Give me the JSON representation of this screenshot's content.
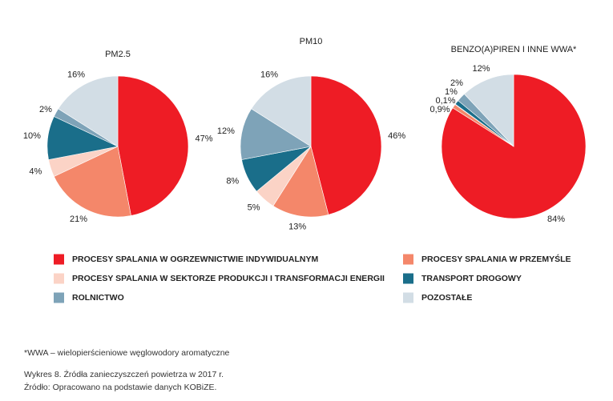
{
  "chart_data": [
    {
      "type": "pie",
      "title": "PM2.5",
      "categories": [
        "PROCESY SPALANIA W OGRZEWNICTWIE INDYWIDUALNYM",
        "PROCESY SPALANIA W PRZEMYŚLE",
        "PROCESY SPALANIA W SEKTORZE PRODUKCJI I TRANSFORMACJI ENERGII",
        "TRANSPORT DROGOWY",
        "ROLNICTWO",
        "POZOSTAŁE"
      ],
      "values": [
        47,
        21,
        4,
        10,
        2,
        16
      ],
      "value_labels": [
        "47%",
        "21%",
        "4%",
        "10%",
        "2%",
        "16%"
      ],
      "colors": [
        "#ee1c25",
        "#f4876a",
        "#fbd3c6",
        "#1a6e8a",
        "#7ea3b8",
        "#d2dde5"
      ]
    },
    {
      "type": "pie",
      "title": "PM10",
      "categories": [
        "PROCESY SPALANIA W OGRZEWNICTWIE INDYWIDUALNYM",
        "PROCESY SPALANIA W PRZEMYŚLE",
        "PROCESY SPALANIA W SEKTORZE PRODUKCJI I TRANSFORMACJI ENERGII",
        "TRANSPORT DROGOWY",
        "ROLNICTWO",
        "POZOSTAŁE"
      ],
      "values": [
        46,
        13,
        5,
        8,
        12,
        16
      ],
      "value_labels": [
        "46%",
        "13%",
        "5%",
        "8%",
        "12%",
        "16%"
      ],
      "colors": [
        "#ee1c25",
        "#f4876a",
        "#fbd3c6",
        "#1a6e8a",
        "#7ea3b8",
        "#d2dde5"
      ]
    },
    {
      "type": "pie",
      "title": "BENZO(A)PIREN I INNE WWA*",
      "categories": [
        "PROCESY SPALANIA W OGRZEWNICTWIE INDYWIDUALNYM",
        "PROCESY SPALANIA W PRZEMYŚLE",
        "PROCESY SPALANIA W SEKTORZE PRODUKCJI I TRANSFORMACJI ENERGII",
        "TRANSPORT DROGOWY",
        "ROLNICTWO",
        "POZOSTAŁE"
      ],
      "values": [
        84,
        0.9,
        0.1,
        1,
        2,
        12
      ],
      "value_labels": [
        "84%",
        "0,9%",
        "0,1%",
        "1%",
        "2%",
        "12%"
      ],
      "colors": [
        "#ee1c25",
        "#f4876a",
        "#fbd3c6",
        "#1a6e8a",
        "#7ea3b8",
        "#d2dde5"
      ]
    }
  ],
  "footnote": "*WWA – wielopierścieniowe węglowodory aromatyczne",
  "caption": [
    "Wykres 8. Źródła zanieczyszczeń powietrza w 2017 r.",
    "Źródło: Opracowano na podstawie danych KOBiZE."
  ]
}
